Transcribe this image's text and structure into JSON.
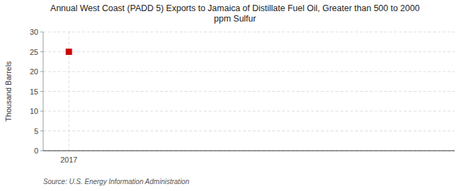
{
  "chart_data": {
    "type": "scatter",
    "title": "Annual West Coast (PADD 5) Exports to Jamaica of Distillate Fuel Oil, Greater than 500 to 2000\nppm Sulfur",
    "ylabel": "Thousand Barrels",
    "source": "Source: U.S. Energy Information Administration",
    "x": [
      2017
    ],
    "values": [
      25
    ],
    "xlim": [
      2016.6,
      2023.0
    ],
    "xticks": [
      2017
    ],
    "ylim": [
      0,
      30
    ],
    "yticks": [
      0,
      5,
      10,
      15,
      20,
      25,
      30
    ],
    "color": "#cc0000",
    "marker": "square",
    "grid": true
  }
}
